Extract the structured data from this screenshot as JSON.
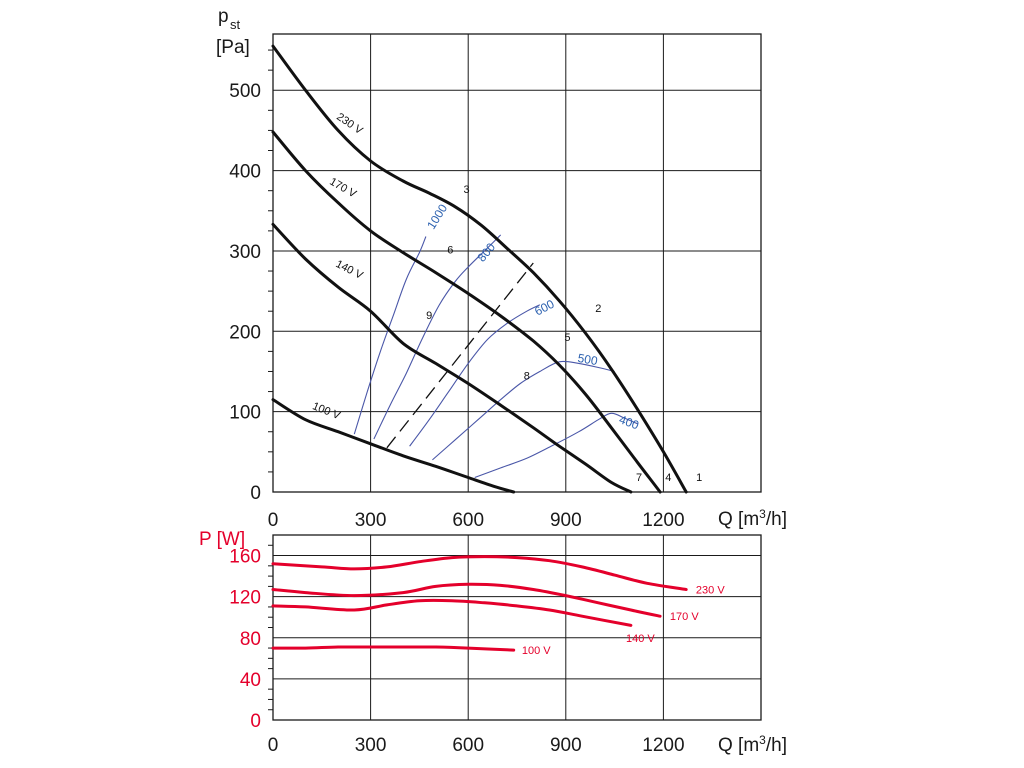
{
  "chart_data": [
    {
      "type": "line",
      "title": "",
      "ylabel_main": "p",
      "ylabel_sub": "st",
      "yunit": "[Pa]",
      "xlabel": "Q [m³/h]",
      "xlabel_q": "Q [m",
      "xlabel_sup": "3",
      "xlabel_tail": "/h]",
      "xlim": [
        0,
        1500
      ],
      "ylim": [
        0,
        570
      ],
      "xticks": [
        "0",
        "300",
        "600",
        "900",
        "1200"
      ],
      "xtick_values": [
        0,
        300,
        600,
        900,
        1200
      ],
      "yticks": [
        "0",
        "100",
        "200",
        "300",
        "400",
        "500"
      ],
      "ytick_values": [
        0,
        100,
        200,
        300,
        400,
        500
      ],
      "grid": true,
      "series": [
        {
          "name": "230 V",
          "x": [
            0,
            100,
            200,
            300,
            400,
            480,
            560,
            640,
            720,
            800,
            880,
            960,
            1040,
            1120,
            1200,
            1270
          ],
          "y": [
            555,
            500,
            450,
            412,
            387,
            372,
            355,
            332,
            303,
            273,
            238,
            198,
            153,
            103,
            50,
            0
          ]
        },
        {
          "name": "170 V",
          "x": [
            0,
            100,
            200,
            300,
            400,
            500,
            600,
            700,
            800,
            880,
            960,
            1040,
            1120,
            1190
          ],
          "y": [
            448,
            400,
            360,
            325,
            298,
            273,
            247,
            219,
            188,
            158,
            122,
            80,
            37,
            0
          ]
        },
        {
          "name": "140 V",
          "x": [
            0,
            100,
            200,
            300,
            400,
            500,
            600,
            700,
            800,
            880,
            960,
            1040,
            1100
          ],
          "y": [
            333,
            290,
            255,
            225,
            185,
            160,
            135,
            108,
            80,
            57,
            35,
            12,
            0
          ]
        },
        {
          "name": "100 V",
          "x": [
            0,
            100,
            200,
            300,
            400,
            500,
            600,
            680,
            740
          ],
          "y": [
            115,
            90,
            75,
            60,
            45,
            32,
            18,
            7,
            0
          ]
        }
      ],
      "isolines": [
        {
          "label": "1000",
          "x": [
            250,
            290,
            330,
            370,
            410,
            450,
            470
          ],
          "y": [
            72,
            125,
            175,
            220,
            265,
            298,
            318
          ]
        },
        {
          "label": "800",
          "x": [
            310,
            360,
            410,
            460,
            510,
            560,
            600,
            650,
            700
          ],
          "y": [
            66,
            108,
            148,
            192,
            232,
            262,
            280,
            300,
            320
          ]
        },
        {
          "label": "600",
          "x": [
            420,
            480,
            540,
            600,
            660,
            720,
            780,
            820
          ],
          "y": [
            57,
            90,
            125,
            160,
            190,
            210,
            225,
            233
          ]
        },
        {
          "label": "500",
          "x": [
            490,
            560,
            630,
            700,
            760,
            820,
            880,
            940,
            1000,
            1050
          ],
          "y": [
            40,
            65,
            90,
            115,
            135,
            150,
            162,
            160,
            155,
            150
          ]
        },
        {
          "label": "400",
          "x": [
            620,
            700,
            780,
            860,
            940,
            1000,
            1040,
            1080,
            1120
          ],
          "y": [
            18,
            30,
            42,
            58,
            75,
            90,
            98,
            92,
            85
          ]
        }
      ],
      "dashed_line": {
        "x": [
          350,
          800
        ],
        "y": [
          55,
          285
        ]
      },
      "curve_labels": [
        {
          "text": "230 V",
          "x": 230,
          "y": 455
        },
        {
          "text": "170 V",
          "x": 210,
          "y": 375
        },
        {
          "text": "140 V",
          "x": 230,
          "y": 273
        },
        {
          "text": "100 V",
          "x": 160,
          "y": 97
        }
      ],
      "rpm_labels": [
        {
          "text": "1000",
          "x": 515,
          "y": 340
        },
        {
          "text": "800",
          "x": 665,
          "y": 295
        },
        {
          "text": "600",
          "x": 840,
          "y": 225
        },
        {
          "text": "500",
          "x": 965,
          "y": 160
        },
        {
          "text": "400",
          "x": 1090,
          "y": 82
        }
      ],
      "points": [
        {
          "label": "1",
          "x": 1310,
          "y": 14
        },
        {
          "label": "2",
          "x": 1000,
          "y": 224
        },
        {
          "label": "3",
          "x": 595,
          "y": 372
        },
        {
          "label": "4",
          "x": 1215,
          "y": 14
        },
        {
          "label": "5",
          "x": 905,
          "y": 188
        },
        {
          "label": "6",
          "x": 545,
          "y": 297
        },
        {
          "label": "7",
          "x": 1125,
          "y": 14
        },
        {
          "label": "8",
          "x": 780,
          "y": 140
        },
        {
          "label": "9",
          "x": 480,
          "y": 215
        }
      ]
    },
    {
      "type": "line",
      "ylabel": "P [W]",
      "xlabel": "Q [m³/h]",
      "xlabel_q": "Q [m",
      "xlabel_sup": "3",
      "xlabel_tail": "/h]",
      "xlim": [
        0,
        1500
      ],
      "ylim": [
        0,
        180
      ],
      "xticks": [
        "0",
        "300",
        "600",
        "900",
        "1200"
      ],
      "xtick_values": [
        0,
        300,
        600,
        900,
        1200
      ],
      "yticks": [
        "0",
        "40",
        "80",
        "120",
        "160"
      ],
      "ytick_values": [
        0,
        40,
        80,
        120,
        160
      ],
      "grid": true,
      "series": [
        {
          "name": "230 V",
          "x": [
            0,
            150,
            250,
            350,
            450,
            550,
            650,
            750,
            850,
            950,
            1050,
            1150,
            1270
          ],
          "y": [
            152,
            149,
            147,
            149,
            154,
            158,
            159,
            158,
            155,
            149,
            141,
            133,
            127
          ]
        },
        {
          "name": "170 V",
          "x": [
            0,
            100,
            250,
            400,
            500,
            600,
            700,
            800,
            900,
            1000,
            1100,
            1190
          ],
          "y": [
            127,
            124,
            121,
            124,
            130,
            132,
            131,
            127,
            121,
            114,
            107,
            101
          ]
        },
        {
          "name": "140 V",
          "x": [
            0,
            100,
            250,
            350,
            450,
            550,
            650,
            750,
            850,
            950,
            1100
          ],
          "y": [
            111,
            110,
            107,
            112,
            116,
            116,
            114,
            111,
            107,
            101,
            92
          ]
        },
        {
          "name": "100 V",
          "x": [
            0,
            100,
            200,
            300,
            400,
            500,
            600,
            740
          ],
          "y": [
            70,
            70,
            71,
            71,
            71,
            71,
            70,
            68
          ]
        }
      ],
      "series_labels": [
        {
          "text": "230 V",
          "x": 1300,
          "y": 127
        },
        {
          "text": "170 V",
          "x": 1220,
          "y": 101
        },
        {
          "text": "140 V",
          "x": 1085,
          "y": 80
        },
        {
          "text": "100 V",
          "x": 765,
          "y": 68
        }
      ]
    }
  ]
}
